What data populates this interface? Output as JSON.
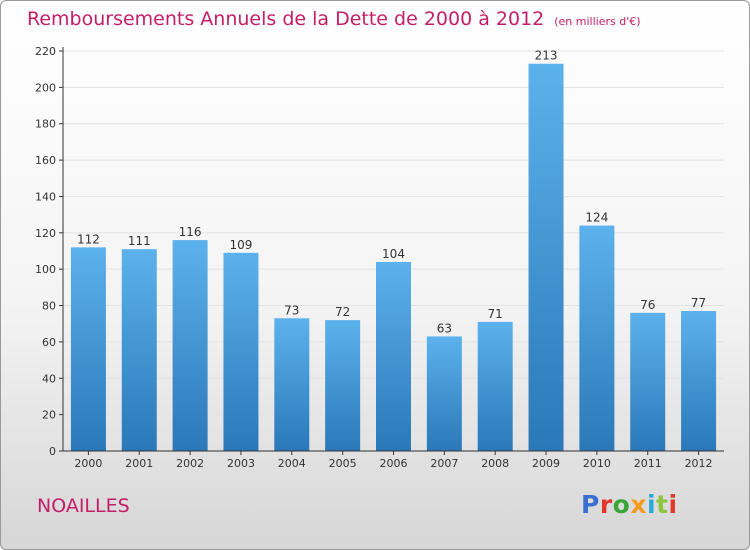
{
  "title": {
    "main": "Remboursements Annuels de la Dette de 2000 à 2012",
    "unit": "(en milliers d'€)"
  },
  "commune": "NOAILLES",
  "brand": {
    "text": "Proxiti",
    "colors": [
      "#3a6fd1",
      "#e2372b",
      "#3aa636",
      "#f39c1e",
      "#2aa8d8",
      "#8cc63e",
      "#e2372b"
    ]
  },
  "colors": {
    "title": "#c41e68",
    "bar_top": "#5cb2ec",
    "bar_bottom": "#2a78b8",
    "grid": "#e2e2e2",
    "axis": "#333333"
  },
  "chart_data": {
    "type": "bar",
    "categories": [
      "2000",
      "2001",
      "2002",
      "2003",
      "2004",
      "2005",
      "2006",
      "2007",
      "2008",
      "2009",
      "2010",
      "2011",
      "2012"
    ],
    "values": [
      112,
      111,
      116,
      109,
      73,
      72,
      104,
      63,
      71,
      213,
      124,
      76,
      77
    ],
    "ylim": [
      0,
      220
    ],
    "yticks": [
      0,
      20,
      40,
      60,
      80,
      100,
      120,
      140,
      160,
      180,
      200,
      220
    ],
    "grid": true,
    "xlabel": "",
    "ylabel": ""
  }
}
